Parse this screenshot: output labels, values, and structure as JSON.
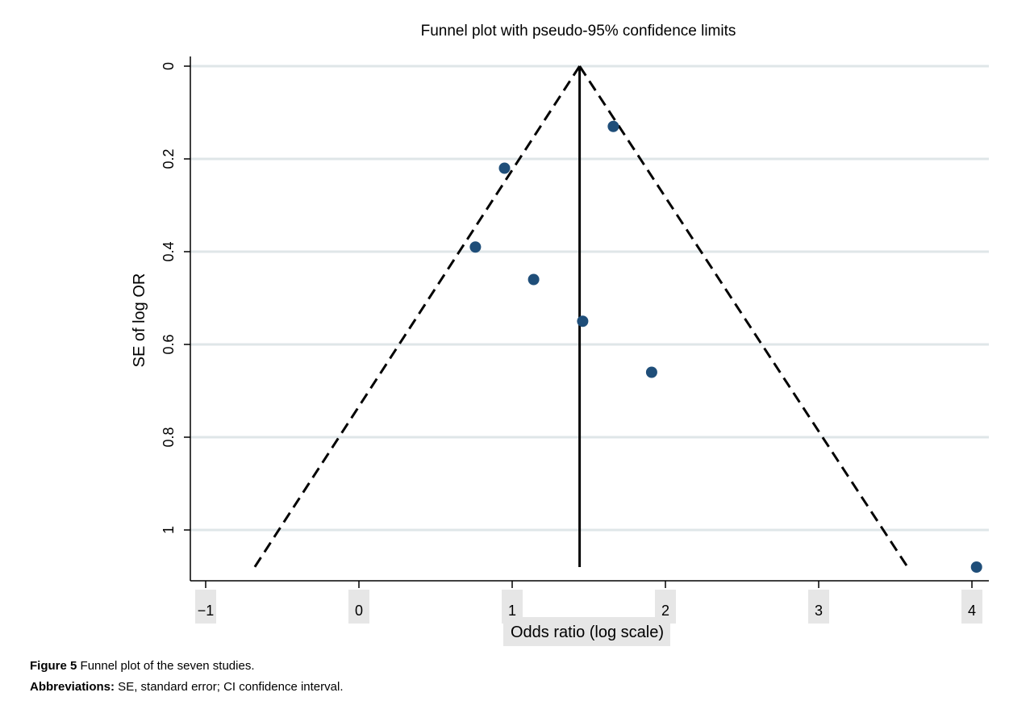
{
  "chart_data": {
    "type": "scatter",
    "title": "Funnel plot with pseudo-95% confidence limits",
    "xlabel": "Odds ratio (log scale)",
    "ylabel": "SE of log OR",
    "x_ticks": [
      "−1",
      "0",
      "1",
      "2",
      "3",
      "4"
    ],
    "x_tick_values": [
      -1,
      0,
      1,
      2,
      3,
      4
    ],
    "y_ticks": [
      "0",
      "0.2",
      "0.4",
      "0.6",
      "0.8",
      "1"
    ],
    "y_tick_values": [
      0,
      0.2,
      0.4,
      0.6,
      0.8,
      1
    ],
    "xlim": [
      -1.1,
      4.1
    ],
    "ylim": [
      0,
      1.11
    ],
    "y_inverted": true,
    "grid": "horizontal",
    "pooled_estimate": 1.44,
    "funnel_limits": {
      "apex": {
        "x": 1.44,
        "y": 0
      },
      "left_bottom": {
        "x": -0.68,
        "y": 1.08
      },
      "right_bottom": {
        "x": 3.58,
        "y": 1.08
      },
      "style": "dashed"
    },
    "points": [
      {
        "x": 1.66,
        "y": 0.13
      },
      {
        "x": 0.95,
        "y": 0.22
      },
      {
        "x": 0.76,
        "y": 0.39
      },
      {
        "x": 1.14,
        "y": 0.46
      },
      {
        "x": 1.46,
        "y": 0.55
      },
      {
        "x": 1.91,
        "y": 0.66
      },
      {
        "x": 4.03,
        "y": 1.08
      }
    ],
    "colors": {
      "point": "#1f4e79",
      "grid": "#dfe6e8",
      "tick_bg": "#e6e6e6"
    }
  },
  "caption": {
    "figure_label": "Figure 5",
    "figure_text": " Funnel plot of the seven studies.",
    "abbrev_label": "Abbreviations:",
    "abbrev_text": " SE, standard error; CI confidence interval."
  }
}
